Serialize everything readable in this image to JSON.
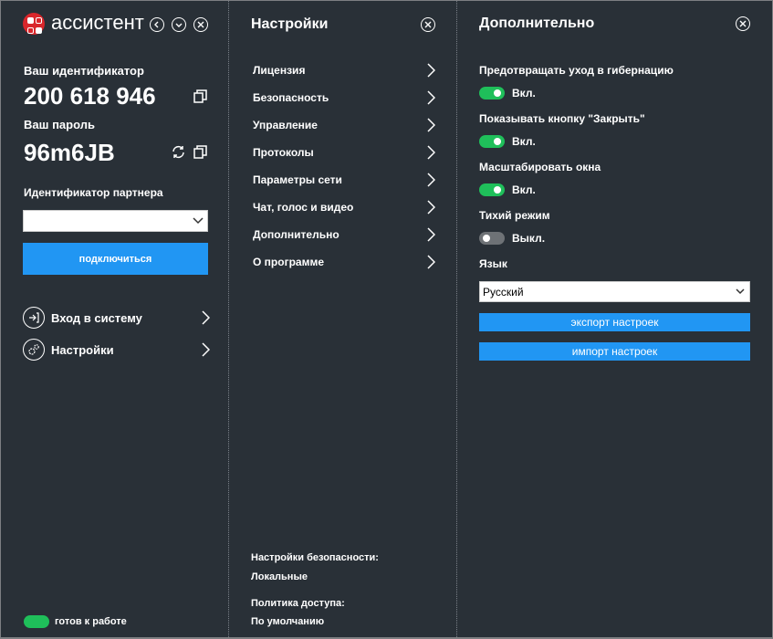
{
  "app": {
    "title": "ассистент"
  },
  "connect": {
    "id_label": "Ваш идентификатор",
    "id_value": "200 618 946",
    "password_label": "Ваш пароль",
    "password_value": "96m6JB",
    "partner_label": "Идентификатор партнера",
    "partner_value": "",
    "connect_button": "подключиться",
    "nav": [
      {
        "label": "Вход в систему",
        "icon": "login-icon"
      },
      {
        "label": "Настройки",
        "icon": "gears-icon"
      }
    ],
    "status": "готов к работе",
    "status_color": "#1fbf5a"
  },
  "settings": {
    "title": "Настройки",
    "items": [
      "Лицензия",
      "Безопасность",
      "Управление",
      "Протоколы",
      "Параметры сети",
      "Чат, голос и видео",
      "Дополнительно",
      "О программе"
    ],
    "security_label": "Настройки безопасности:",
    "security_value": "Локальные",
    "policy_label": "Политика доступа:",
    "policy_value": "По умолчанию"
  },
  "advanced": {
    "title": "Дополнительно",
    "options": [
      {
        "label": "Предотвращать уход в гибернацию",
        "state": "Вкл.",
        "on": true
      },
      {
        "label": "Показывать кнопку \"Закрыть\"",
        "state": "Вкл.",
        "on": true
      },
      {
        "label": "Масштабировать окна",
        "state": "Вкл.",
        "on": true
      },
      {
        "label": "Тихий режим",
        "state": "Выкл.",
        "on": false
      }
    ],
    "language_label": "Язык",
    "language_value": "Русский",
    "export_button": "экспорт настроек",
    "import_button": "импорт настроек"
  },
  "colors": {
    "background": "#293037",
    "accent": "#2196f3",
    "toggle_on": "#1fbf5a",
    "brand": "#d9262b"
  }
}
